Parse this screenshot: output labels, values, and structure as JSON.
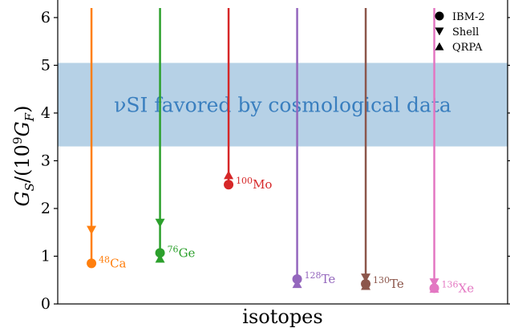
{
  "chart_data": {
    "type": "scatter",
    "xlabel": "isotopes",
    "ylabel": "G_S/(10^9 G_F)",
    "ylim": [
      0,
      6.2
    ],
    "yticks": [
      0,
      1,
      2,
      3,
      4,
      5,
      6
    ],
    "band": {
      "ymin": 3.3,
      "ymax": 5.05,
      "label": "νSI favored by cosmological data",
      "color": "#b6d1e6"
    },
    "legend": {
      "placement": "top-right",
      "entries": [
        {
          "name": "IBM-2",
          "marker": "circle"
        },
        {
          "name": "Shell",
          "marker": "triangle-down"
        },
        {
          "name": "QRPA",
          "marker": "triangle-up"
        }
      ]
    },
    "isotopes": [
      {
        "mass": "48",
        "element": "Ca",
        "color": "#ff7f0e",
        "IBM-2": 0.85,
        "Shell": 1.55,
        "QRPA": null
      },
      {
        "mass": "76",
        "element": "Ge",
        "color": "#2ca02c",
        "IBM-2": 1.07,
        "Shell": 1.7,
        "QRPA": 0.95
      },
      {
        "mass": "100",
        "element": "Mo",
        "color": "#d62728",
        "IBM-2": 2.5,
        "Shell": null,
        "QRPA": 2.7
      },
      {
        "mass": "128",
        "element": "Te",
        "color": "#9467bd",
        "IBM-2": 0.52,
        "Shell": null,
        "QRPA": 0.42
      },
      {
        "mass": "130",
        "element": "Te",
        "color": "#8c564b",
        "IBM-2": 0.42,
        "Shell": 0.55,
        "QRPA": 0.38
      },
      {
        "mass": "136",
        "element": "Xe",
        "color": "#e377c2",
        "IBM-2": 0.33,
        "Shell": 0.45,
        "QRPA": 0.32
      }
    ]
  }
}
